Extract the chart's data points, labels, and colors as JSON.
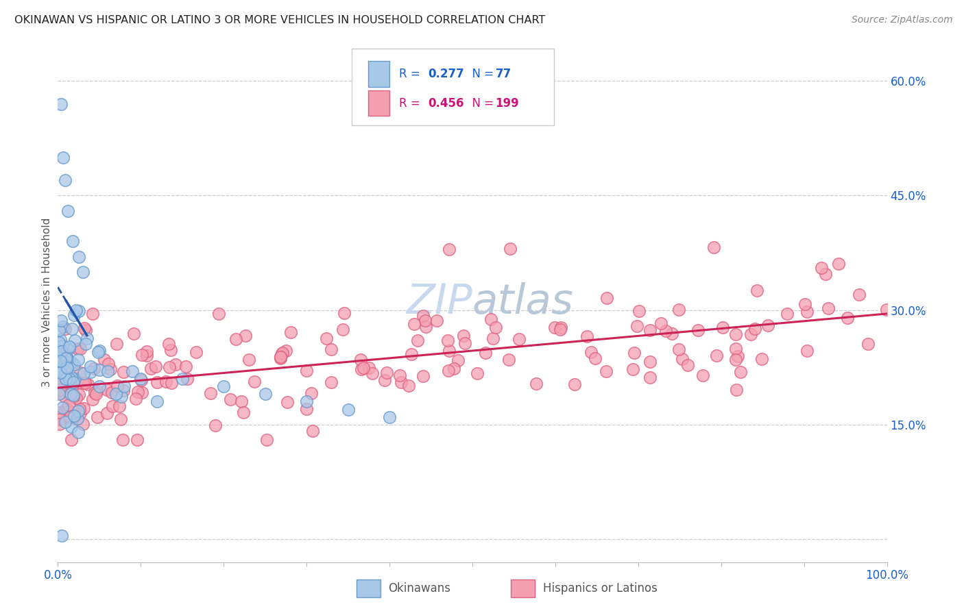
{
  "title": "OKINAWAN VS HISPANIC OR LATINO 3 OR MORE VEHICLES IN HOUSEHOLD CORRELATION CHART",
  "source": "Source: ZipAtlas.com",
  "ylabel": "3 or more Vehicles in Household",
  "xlim": [
    0,
    100
  ],
  "ylim": [
    -3,
    65
  ],
  "yticks": [
    0,
    15,
    30,
    45,
    60
  ],
  "ytick_labels": [
    "",
    "15.0%",
    "30.0%",
    "45.0%",
    "60.0%"
  ],
  "xtick_positions": [
    0,
    10,
    20,
    30,
    40,
    50,
    60,
    70,
    80,
    90,
    100
  ],
  "xtick_labels": [
    "0.0%",
    "",
    "",
    "",
    "",
    "",
    "",
    "",
    "",
    "",
    "100.0%"
  ],
  "okinawan_R": 0.277,
  "okinawan_N": 77,
  "hispanic_R": 0.456,
  "hispanic_N": 199,
  "blue_fill": "#a8c8e8",
  "blue_edge": "#6699cc",
  "pink_fill": "#f4a0b0",
  "pink_edge": "#e06080",
  "blue_line_color": "#2255aa",
  "pink_line_color": "#cc2255",
  "background_color": "#ffffff",
  "grid_color": "#cccccc",
  "title_color": "#222222",
  "tick_label_color": "#1a5fc8",
  "legend_color_blue": "#1a5fc8",
  "legend_color_pink": "#cc1177",
  "watermark_color": "#c8d8ee",
  "source_color": "#888888"
}
